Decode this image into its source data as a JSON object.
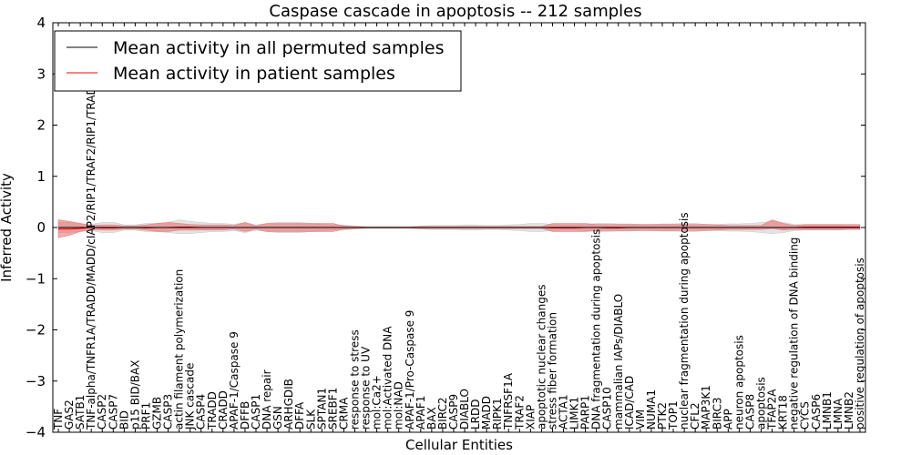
{
  "chart_data": {
    "type": "line",
    "title": "Caspase cascade in apoptosis -- 212 samples",
    "xlabel": "Cellular Entities",
    "ylabel": "Inferred Activity",
    "ylim": [
      -4,
      4
    ],
    "yticks": [
      4,
      3,
      2,
      1,
      0,
      -1,
      -2,
      -3,
      -4
    ],
    "ytick_labels": [
      "4",
      "3",
      "2",
      "1",
      "0",
      "−1",
      "−2",
      "−3",
      "−4"
    ],
    "grid": false,
    "legend_position": "top-left",
    "categories": [
      "TNF",
      "GAS2",
      "SATB1",
      "TNF-alpha/TNFR1A/TRADD/MADD/cIAP2/RIP1/TRAF2/RIP1/TRADD",
      "CASP2",
      "CASP7",
      "BID",
      "p15 BID/BAX",
      "PRF1",
      "GZMB",
      "CASP3",
      "actin filament polymerization",
      "JNK cascade",
      "CASP4",
      "TRADD",
      "CRADD",
      "APAF-1/Caspase 9",
      "DFFB",
      "CASP1",
      "DNA repair",
      "GSN",
      "ARHGDIB",
      "DFFA",
      "SLK",
      "SPTAN1",
      "SREBF1",
      "CRMA",
      "response to stress",
      "response to UV",
      "mol:Ca2+",
      "mol:Activated DNA",
      "mol:NAD",
      "APAF-1/Pro-Caspase 9",
      "APAF1",
      "BAX",
      "BIRC2",
      "CASP9",
      "DIABLO",
      "LRDD",
      "MADD",
      "RIPK1",
      "TNFRSF1A",
      "TRAF2",
      "XIAP",
      "apoptotic nuclear changes",
      "stress fiber formation",
      "ACTA1",
      "LIMK1",
      "PARP1",
      "DNA fragmentation during apoptosis",
      "CASP10",
      "mammalian IAPs/DIABLO",
      "ICAD/CAD",
      "VIM",
      "NUMA1",
      "PTK2",
      "TOP1",
      "nuclear fragmentation during apoptosis",
      "CFL2",
      "MAP3K1",
      "BIRC3",
      "APP",
      "neuron apoptosis",
      "CASP8",
      "apoptosis",
      "TFAP2A",
      "KRT18",
      "negative regulation of DNA binding",
      "CYCS",
      "CASP6",
      "LMNB1",
      "LMNA",
      "LMNB2",
      "positive regulation of apoptosis"
    ],
    "series": [
      {
        "name": "Mean activity in all permuted samples",
        "color": "#000000",
        "values": [
          0,
          0,
          0,
          0,
          0,
          0,
          0,
          0,
          0,
          0,
          0,
          0,
          0,
          0,
          0,
          0,
          0,
          0,
          0,
          0,
          0,
          0,
          0,
          0,
          0,
          0,
          0,
          0,
          0,
          0,
          0,
          0,
          0,
          0,
          0,
          0,
          0,
          0,
          0,
          0,
          0,
          0,
          0,
          0,
          0,
          0,
          0,
          0,
          0,
          0,
          0,
          0,
          0,
          0,
          0,
          0,
          0,
          0,
          0,
          0,
          0,
          0,
          0,
          0,
          0,
          0,
          0,
          0,
          0,
          0,
          0,
          0,
          0,
          0
        ],
        "band_lower": [
          -0.1,
          -0.1,
          -0.08,
          -0.06,
          -0.1,
          -0.1,
          -0.05,
          -0.05,
          -0.08,
          -0.08,
          -0.1,
          -0.12,
          -0.12,
          -0.1,
          -0.08,
          -0.08,
          -0.06,
          -0.1,
          -0.05,
          -0.08,
          -0.1,
          -0.1,
          -0.1,
          -0.08,
          -0.06,
          -0.05,
          -0.05,
          -0.03,
          -0.02,
          -0.02,
          -0.02,
          -0.02,
          -0.02,
          -0.03,
          -0.04,
          -0.04,
          -0.04,
          -0.05,
          -0.05,
          -0.04,
          -0.04,
          -0.05,
          -0.06,
          -0.08,
          -0.08,
          -0.06,
          -0.05,
          -0.05,
          -0.06,
          -0.08,
          -0.08,
          -0.07,
          -0.07,
          -0.06,
          -0.06,
          -0.07,
          -0.07,
          -0.08,
          -0.08,
          -0.06,
          -0.06,
          -0.07,
          -0.07,
          -0.08,
          -0.1,
          -0.12,
          -0.1,
          -0.06,
          -0.05,
          -0.05,
          -0.05,
          -0.05,
          -0.04,
          -0.04
        ],
        "band_upper": [
          0.1,
          0.1,
          0.08,
          0.06,
          0.1,
          0.1,
          0.05,
          0.05,
          0.08,
          0.08,
          0.1,
          0.15,
          0.12,
          0.1,
          0.08,
          0.08,
          0.06,
          0.1,
          0.05,
          0.08,
          0.1,
          0.1,
          0.1,
          0.08,
          0.06,
          0.05,
          0.05,
          0.03,
          0.02,
          0.02,
          0.02,
          0.02,
          0.02,
          0.03,
          0.04,
          0.04,
          0.04,
          0.05,
          0.05,
          0.04,
          0.04,
          0.05,
          0.06,
          0.08,
          0.08,
          0.06,
          0.05,
          0.05,
          0.06,
          0.08,
          0.08,
          0.07,
          0.07,
          0.06,
          0.06,
          0.07,
          0.07,
          0.08,
          0.08,
          0.06,
          0.06,
          0.07,
          0.07,
          0.08,
          0.1,
          0.12,
          0.1,
          0.06,
          0.05,
          0.05,
          0.05,
          0.05,
          0.04,
          0.04
        ]
      },
      {
        "name": "Mean activity in patient samples",
        "color": "#ff0000",
        "values": [
          -0.03,
          -0.03,
          -0.02,
          0,
          -0.01,
          -0.01,
          0,
          0,
          -0.01,
          0,
          0,
          0.01,
          0.01,
          0,
          0,
          0,
          0,
          0,
          0,
          0,
          0,
          0,
          0,
          0,
          0,
          0,
          0,
          0,
          0,
          0,
          0,
          0,
          0,
          0,
          0,
          0,
          0,
          0,
          0,
          0,
          0,
          0,
          0,
          0,
          0,
          -0.01,
          -0.01,
          -0.01,
          0,
          0,
          -0.01,
          -0.01,
          0,
          0,
          0,
          0,
          0,
          0,
          0,
          0,
          0,
          0,
          0,
          0,
          0,
          0,
          0,
          0,
          0.01,
          0.01,
          0.01,
          0.01,
          0.01,
          0.01
        ],
        "band_lower": [
          -0.2,
          -0.15,
          -0.08,
          -0.04,
          -0.05,
          -0.05,
          -0.03,
          -0.03,
          -0.05,
          -0.08,
          -0.08,
          -0.05,
          -0.05,
          -0.05,
          -0.05,
          -0.05,
          -0.03,
          -0.08,
          -0.03,
          -0.08,
          -0.08,
          -0.08,
          -0.08,
          -0.08,
          -0.08,
          -0.08,
          -0.03,
          -0.02,
          -0.01,
          -0.01,
          -0.01,
          -0.01,
          -0.01,
          -0.02,
          -0.02,
          -0.02,
          -0.02,
          -0.02,
          -0.02,
          -0.02,
          -0.02,
          -0.02,
          -0.02,
          -0.02,
          -0.02,
          -0.08,
          -0.08,
          -0.08,
          -0.08,
          -0.06,
          -0.06,
          -0.06,
          -0.06,
          -0.06,
          -0.06,
          -0.06,
          -0.06,
          -0.06,
          -0.06,
          -0.06,
          -0.05,
          -0.04,
          -0.04,
          -0.04,
          -0.04,
          -0.02,
          -0.05,
          -0.04,
          -0.04,
          -0.04,
          -0.04,
          -0.04,
          -0.04,
          -0.04
        ],
        "band_upper": [
          0.15,
          0.12,
          0.08,
          0.04,
          0.05,
          0.05,
          0.03,
          0.03,
          0.05,
          0.08,
          0.1,
          0.08,
          0.06,
          0.05,
          0.05,
          0.05,
          0.04,
          0.1,
          0.03,
          0.08,
          0.08,
          0.08,
          0.08,
          0.08,
          0.08,
          0.08,
          0.03,
          0.02,
          0.01,
          0.01,
          0.01,
          0.01,
          0.01,
          0.02,
          0.02,
          0.02,
          0.02,
          0.02,
          0.02,
          0.02,
          0.02,
          0.02,
          0.02,
          0.02,
          0.02,
          0.08,
          0.08,
          0.08,
          0.08,
          0.06,
          0.06,
          0.06,
          0.06,
          0.06,
          0.06,
          0.06,
          0.06,
          0.06,
          0.06,
          0.06,
          0.05,
          0.04,
          0.04,
          0.04,
          0.04,
          0.15,
          0.08,
          0.04,
          0.06,
          0.06,
          0.06,
          0.06,
          0.06,
          0.06
        ]
      }
    ]
  }
}
